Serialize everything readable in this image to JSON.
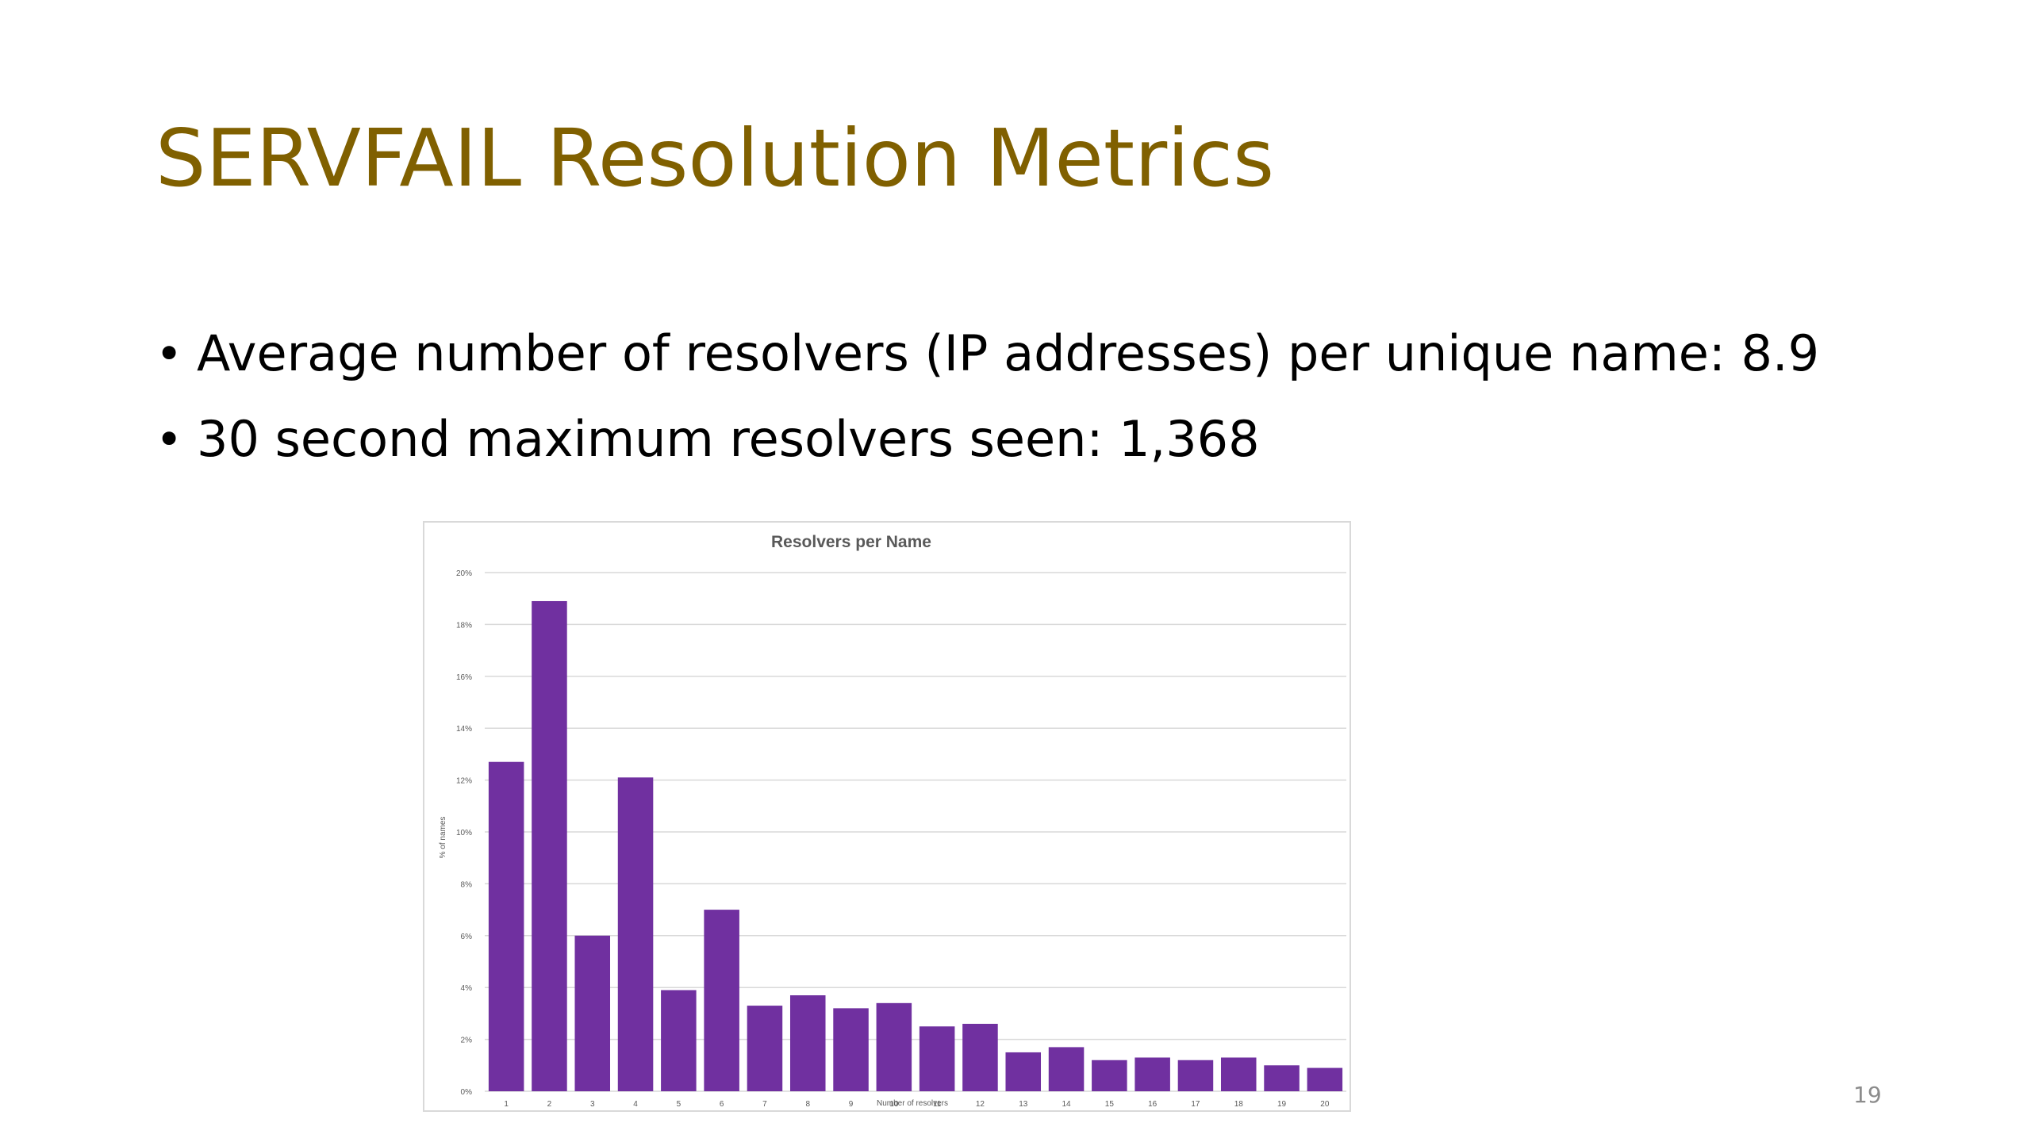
{
  "slide": {
    "title": "SERVFAIL Resolution Metrics",
    "bullets": [
      "Average number of resolvers (IP addresses) per unique name: 8.9",
      "30 second maximum resolvers seen: 1,368"
    ],
    "bullet_glyph": "•",
    "page_number": "19",
    "colors": {
      "title": "#806000",
      "text": "#000000",
      "bar": "#7030a0",
      "gridline": "#d9d9d9",
      "page_number": "#8c8c8c"
    }
  },
  "chart_data": {
    "type": "bar",
    "title": "Resolvers per Name",
    "xlabel": "Number of resolvers",
    "ylabel": "% of names",
    "categories": [
      "1",
      "2",
      "3",
      "4",
      "5",
      "6",
      "7",
      "8",
      "9",
      "10",
      "11",
      "12",
      "13",
      "14",
      "15",
      "16",
      "17",
      "18",
      "19",
      "20"
    ],
    "values": [
      12.7,
      18.9,
      6.0,
      12.1,
      3.9,
      7.0,
      3.3,
      3.7,
      3.2,
      3.4,
      2.5,
      2.6,
      1.5,
      1.7,
      1.2,
      1.3,
      1.2,
      1.3,
      1.0,
      0.9
    ],
    "value_unit": "%",
    "ylim": [
      0,
      20
    ],
    "yticks": [
      "0%",
      "2%",
      "4%",
      "6%",
      "8%",
      "10%",
      "12%",
      "14%",
      "16%",
      "18%",
      "20%"
    ],
    "grid": true,
    "legend": "none",
    "bar_color": "#7030a0"
  }
}
